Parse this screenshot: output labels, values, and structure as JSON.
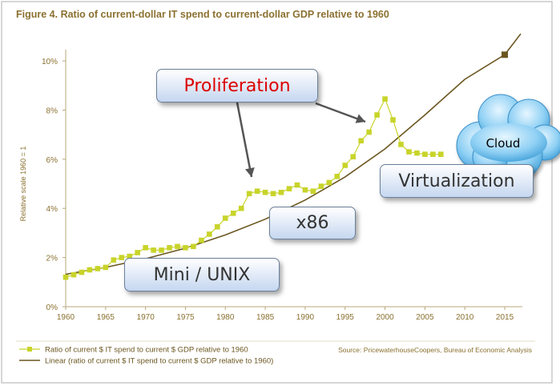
{
  "chart_data": {
    "type": "line",
    "title": "Figure 4. Ratio of current-dollar IT spend to current-dollar GDP relative to 1960",
    "ylabel": "Relative scale 1960 = 1",
    "xlim": [
      1960,
      2016
    ],
    "ylim": [
      0,
      10
    ],
    "x_ticks": [
      "1960",
      "1965",
      "1970",
      "1975",
      "1980",
      "1985",
      "1990",
      "1995",
      "2000",
      "2005",
      "2010",
      "2015"
    ],
    "y_ticks": [
      "0%",
      "2%",
      "4%",
      "6%",
      "8%",
      "10%"
    ],
    "grid": false,
    "legend_position": "bottom-left",
    "source": "Source: PricewaterhouseCoopers, Bureau of Economic Analysis",
    "series": [
      {
        "name": "Ratio of current $ IT spend to current $ GDP relative to 1960",
        "color": "#c8d42a",
        "marker": "square",
        "x": [
          1960,
          1961,
          1962,
          1963,
          1964,
          1965,
          1966,
          1967,
          1968,
          1969,
          1970,
          1971,
          1972,
          1973,
          1974,
          1975,
          1976,
          1977,
          1978,
          1979,
          1980,
          1981,
          1982,
          1983,
          1984,
          1985,
          1986,
          1987,
          1988,
          1989,
          1990,
          1991,
          1992,
          1993,
          1994,
          1995,
          1996,
          1997,
          1998,
          1999,
          2000,
          2001,
          2002,
          2003,
          2004,
          2005,
          2006,
          2007
        ],
        "y": [
          1.2,
          1.3,
          1.4,
          1.5,
          1.55,
          1.6,
          1.9,
          2.0,
          2.05,
          2.2,
          2.4,
          2.3,
          2.3,
          2.4,
          2.45,
          2.4,
          2.45,
          2.7,
          2.95,
          3.25,
          3.6,
          3.8,
          4.0,
          4.6,
          4.7,
          4.65,
          4.6,
          4.65,
          4.8,
          4.95,
          4.75,
          4.7,
          4.9,
          5.05,
          5.3,
          5.75,
          6.1,
          6.75,
          7.1,
          7.8,
          8.45,
          7.6,
          6.6,
          6.3,
          6.25,
          6.2,
          6.2,
          6.2
        ]
      },
      {
        "name": "Linear (ratio of current $ IT spend to current $ GDP relative to 1960)",
        "color": "#6b5620",
        "type": "trend",
        "x": [
          1960,
          1965,
          1970,
          1975,
          1980,
          1985,
          1990,
          1995,
          2000,
          2005,
          2010,
          2015,
          2017
        ],
        "y": [
          1.32,
          1.6,
          1.95,
          2.38,
          2.92,
          3.56,
          4.34,
          5.28,
          6.42,
          7.8,
          9.25,
          10.25,
          11.1
        ],
        "end_marker": {
          "x": 2015,
          "y": 10.25
        }
      }
    ],
    "annotations": [
      {
        "text": "Proliferation",
        "color": "#dd0000"
      },
      {
        "text": "x86",
        "color": "#333333"
      },
      {
        "text": "Mini / UNIX",
        "color": "#333333"
      },
      {
        "text": "Virtualization",
        "color": "#333333"
      },
      {
        "text": "Cloud",
        "color": "#000000"
      }
    ]
  }
}
